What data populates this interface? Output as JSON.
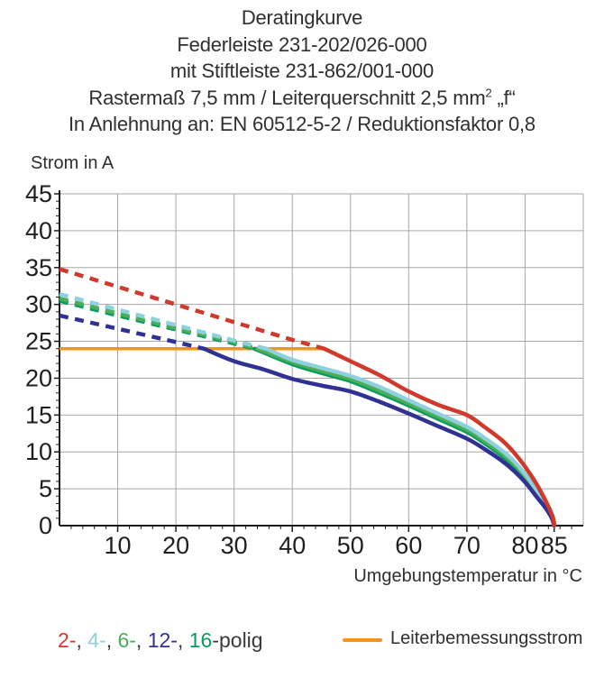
{
  "title": {
    "line1": "Deratingkurve",
    "line2": "Federleiste 231-202/026-000",
    "line3": "mit Stiftleiste 231-862/001-000",
    "line4_pre": "Rastermaß 7,5 mm / Leiterquerschnitt 2,5 mm",
    "line4_sup": "2",
    "line4_post": " „f“",
    "line5": "In Anlehnung an: EN 60512-5-2 / Reduktionsfaktor 0,8"
  },
  "chart_data": {
    "type": "line",
    "title": "Deratingkurve",
    "xlabel": "Umgebungstemperatur in °C",
    "ylabel": "Strom in A",
    "grid": true,
    "rated_current_A": 24,
    "x_axis": {
      "min": 0,
      "max": 90,
      "ticks": [
        10,
        20,
        30,
        40,
        50,
        60,
        70,
        80,
        85
      ],
      "minor_step": 2,
      "grid_step": 10
    },
    "y_axis": {
      "min": 0,
      "max": 45,
      "ticks": [
        0,
        5,
        10,
        15,
        20,
        25,
        30,
        35,
        40,
        45
      ],
      "minor_step": 1,
      "grid_step": 5
    },
    "series": [
      {
        "name": "16-polig",
        "color": "#0b9b60",
        "dashed": [
          [
            0,
            30.5
          ],
          [
            10,
            28.5
          ],
          [
            20,
            26.6
          ],
          [
            30,
            24.7
          ],
          [
            33.5,
            24
          ]
        ],
        "solid": [
          [
            33.5,
            24
          ],
          [
            40,
            21.9
          ],
          [
            45,
            20.7
          ],
          [
            50,
            19.6
          ],
          [
            55,
            18.0
          ],
          [
            60,
            16.3
          ],
          [
            65,
            14.5
          ],
          [
            70,
            12.7
          ],
          [
            73,
            11.2
          ],
          [
            76,
            9.5
          ],
          [
            78,
            8.1
          ],
          [
            80,
            6.4
          ],
          [
            82,
            4.3
          ],
          [
            83.6,
            2.6
          ],
          [
            84.6,
            1.1
          ],
          [
            85,
            0
          ]
        ]
      },
      {
        "name": "6-polig",
        "color": "#4bae57",
        "dashed": [
          [
            0,
            30.8
          ],
          [
            10,
            28.8
          ],
          [
            20,
            26.8
          ],
          [
            30,
            24.9
          ],
          [
            34,
            24
          ]
        ],
        "solid": [
          [
            34,
            24
          ],
          [
            40,
            22.2
          ],
          [
            45,
            21.0
          ],
          [
            50,
            19.9
          ],
          [
            55,
            18.3
          ],
          [
            60,
            16.6
          ],
          [
            65,
            14.8
          ],
          [
            70,
            13.0
          ],
          [
            73,
            11.5
          ],
          [
            76,
            9.8
          ],
          [
            78,
            8.4
          ],
          [
            80,
            6.7
          ],
          [
            82,
            4.5
          ],
          [
            83.7,
            2.7
          ],
          [
            84.7,
            1.2
          ],
          [
            85,
            0
          ]
        ]
      },
      {
        "name": "4-polig",
        "color": "#8ed0dd",
        "dashed": [
          [
            0,
            31.4
          ],
          [
            10,
            29.3
          ],
          [
            20,
            27.2
          ],
          [
            30,
            25.1
          ],
          [
            35.5,
            24
          ]
        ],
        "solid": [
          [
            35.5,
            24
          ],
          [
            40,
            22.5
          ],
          [
            45,
            21.4
          ],
          [
            50,
            20.3
          ],
          [
            55,
            18.8
          ],
          [
            60,
            17.0
          ],
          [
            65,
            15.2
          ],
          [
            70,
            13.4
          ],
          [
            73,
            11.9
          ],
          [
            76,
            10.2
          ],
          [
            78,
            8.8
          ],
          [
            80,
            7.0
          ],
          [
            82,
            4.8
          ],
          [
            83.7,
            2.9
          ],
          [
            84.7,
            1.3
          ],
          [
            85,
            0
          ]
        ]
      },
      {
        "name": "12-polig",
        "color": "#2f3193",
        "dashed": [
          [
            0,
            28.5
          ],
          [
            5,
            27.6
          ],
          [
            10,
            26.7
          ],
          [
            15,
            25.8
          ],
          [
            20,
            24.9
          ],
          [
            24.8,
            24
          ]
        ],
        "solid": [
          [
            24.8,
            24
          ],
          [
            30,
            22.3
          ],
          [
            35,
            21.2
          ],
          [
            40,
            19.9
          ],
          [
            45,
            19.0
          ],
          [
            50,
            18.2
          ],
          [
            55,
            16.8
          ],
          [
            60,
            15.2
          ],
          [
            65,
            13.5
          ],
          [
            70,
            11.8
          ],
          [
            73,
            10.4
          ],
          [
            76,
            8.8
          ],
          [
            78,
            7.5
          ],
          [
            80,
            5.9
          ],
          [
            82,
            3.9
          ],
          [
            83.6,
            2.3
          ],
          [
            84.6,
            1.0
          ],
          [
            85,
            0
          ]
        ]
      },
      {
        "name": "2-polig",
        "color": "#cf3a2c",
        "dashed": [
          [
            0,
            34.8
          ],
          [
            5,
            33.6
          ],
          [
            10,
            32.4
          ],
          [
            15,
            31.2
          ],
          [
            20,
            30.0
          ],
          [
            25,
            28.8
          ],
          [
            30,
            27.6
          ],
          [
            35,
            26.4
          ],
          [
            40,
            25.2
          ],
          [
            45.5,
            24
          ]
        ],
        "solid": [
          [
            45.5,
            24
          ],
          [
            50,
            22.3
          ],
          [
            55,
            20.4
          ],
          [
            60,
            18.2
          ],
          [
            65,
            16.4
          ],
          [
            70,
            15.0
          ],
          [
            73,
            13.4
          ],
          [
            76,
            11.6
          ],
          [
            78,
            10.0
          ],
          [
            80,
            8.0
          ],
          [
            82,
            5.6
          ],
          [
            83.5,
            3.4
          ],
          [
            84.4,
            1.9
          ],
          [
            84.9,
            0.8
          ],
          [
            85,
            0
          ]
        ]
      }
    ],
    "rated_line": {
      "name": "Leiterbemessungsstrom",
      "color": "#f0941f",
      "points": [
        [
          0,
          24
        ],
        [
          45.5,
          24
        ]
      ]
    }
  },
  "legend": {
    "pole_parts": [
      {
        "text": "2-",
        "color": "#cf3a2c"
      },
      {
        "text": ", ",
        "color": "#3a3a3a"
      },
      {
        "text": "4-",
        "color": "#8ed0dd"
      },
      {
        "text": ", ",
        "color": "#3a3a3a"
      },
      {
        "text": "6-",
        "color": "#4bae57"
      },
      {
        "text": ", ",
        "color": "#3a3a3a"
      },
      {
        "text": "12-",
        "color": "#2f3193"
      },
      {
        "text": ", ",
        "color": "#3a3a3a"
      },
      {
        "text": "16",
        "color": "#0b9b60"
      },
      {
        "text": "-polig",
        "color": "#3a3a3a"
      }
    ],
    "rated": {
      "label": "Leiterbemessungsstrom",
      "swatch_color": "#f0941f"
    }
  },
  "axis_labels": {
    "y": "Strom in A",
    "x": "Umgebungstemperatur in °C"
  }
}
